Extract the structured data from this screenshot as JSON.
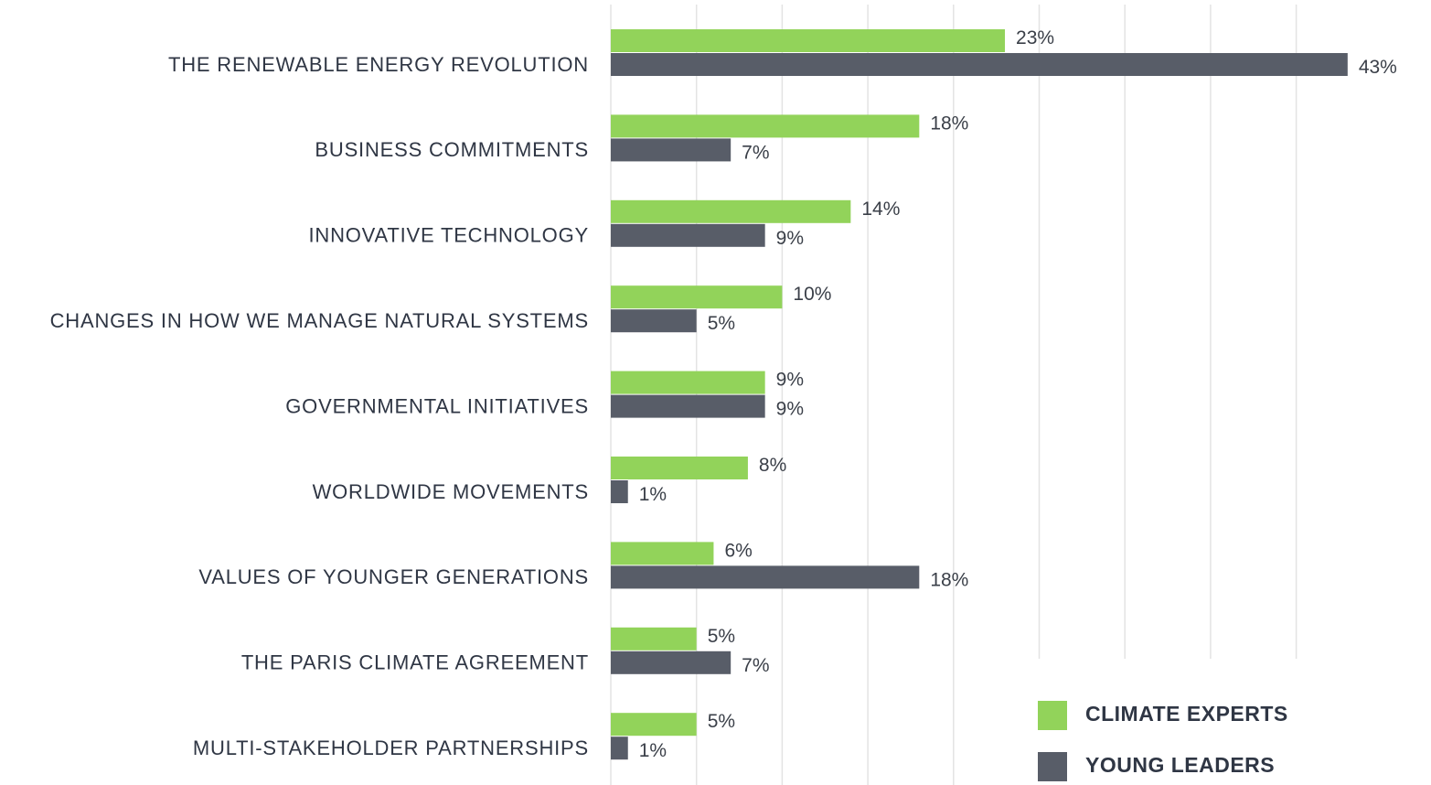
{
  "chart_data": {
    "type": "barh",
    "categories": [
      "THE RENEWABLE ENERGY REVOLUTION",
      "BUSINESS COMMITMENTS",
      "INNOVATIVE TECHNOLOGY",
      "CHANGES IN HOW WE MANAGE NATURAL SYSTEMS",
      "GOVERNMENTAL INITIATIVES",
      "WORLDWIDE MOVEMENTS",
      "VALUES OF YOUNGER GENERATIONS",
      "THE PARIS CLIMATE AGREEMENT",
      "MULTI-STAKEHOLDER PARTNERSHIPS"
    ],
    "series": [
      {
        "name": "CLIMATE EXPERTS",
        "color": "#92d35a",
        "values": [
          23,
          18,
          14,
          10,
          9,
          8,
          6,
          5,
          5
        ],
        "value_labels": [
          "23%",
          "18%",
          "14%",
          "10%",
          "9%",
          "8%",
          "6%",
          "5%",
          "5%"
        ]
      },
      {
        "name": "YOUNG LEADERS",
        "color": "#585d68",
        "values": [
          43,
          7,
          9,
          5,
          9,
          1,
          18,
          7,
          1
        ],
        "value_labels": [
          "43%",
          "7%",
          "9%",
          "5%",
          "9%",
          "1%",
          "18%",
          "7%",
          "1%"
        ]
      }
    ],
    "xlim": [
      0,
      45
    ],
    "xticks": [
      0,
      5,
      10,
      15,
      20,
      25,
      30,
      35,
      40
    ],
    "grid": true
  }
}
